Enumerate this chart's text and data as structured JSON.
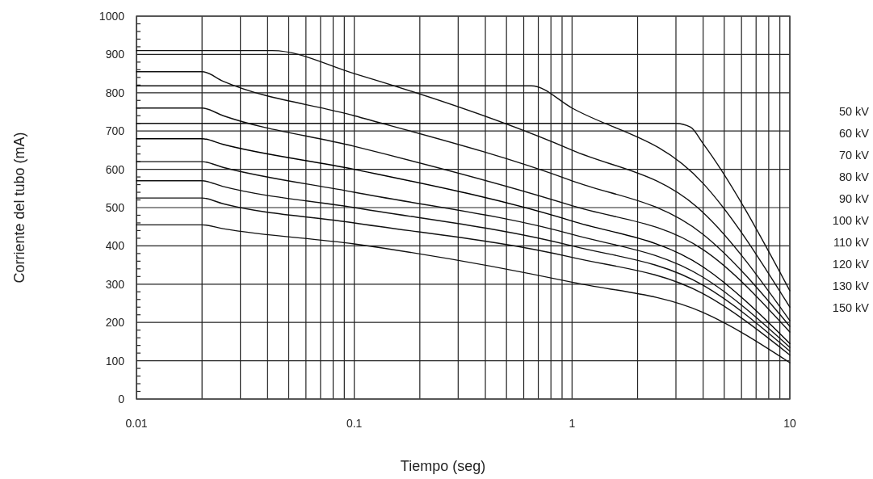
{
  "chart_data": {
    "type": "line",
    "xlabel": "Tiempo (seg)",
    "ylabel": "Corriente del tubo (mA)",
    "log": "x",
    "grid": true,
    "line_style": "solid",
    "annotations": [
      "50 kV",
      "60 kV",
      "70 kV",
      "80 kV",
      "90 kV",
      "100 kV",
      "110 kV",
      "120 kV",
      "130 kV",
      "150 kV"
    ],
    "xlim": [
      0.01,
      10
    ],
    "ylim": [
      0,
      1000
    ],
    "xticks": [
      0.01,
      {
        "value": 0.02,
        "label": null
      },
      {
        "value": 0.03,
        "label": null
      },
      {
        "value": 0.04,
        "label": null
      },
      {
        "value": 0.05,
        "label": null
      },
      {
        "value": 0.06,
        "label": null
      },
      {
        "value": 0.07,
        "label": null
      },
      {
        "value": 0.08,
        "label": null
      },
      {
        "value": 0.09,
        "label": null
      },
      0.1,
      {
        "value": 0.2,
        "label": null
      },
      {
        "value": 0.3,
        "label": null
      },
      {
        "value": 0.4,
        "label": null
      },
      {
        "value": 0.5,
        "label": null
      },
      {
        "value": 0.6,
        "label": null
      },
      {
        "value": 0.7,
        "label": null
      },
      {
        "value": 0.8,
        "label": null
      },
      {
        "value": 0.9,
        "label": null
      },
      1,
      {
        "value": 2,
        "label": null
      },
      {
        "value": 3,
        "label": null
      },
      {
        "value": 4,
        "label": null
      },
      {
        "value": 5,
        "label": null
      },
      {
        "value": 6,
        "label": null
      },
      {
        "value": 7,
        "label": null
      },
      {
        "value": 8,
        "label": null
      },
      {
        "value": 9,
        "label": null
      },
      10
    ],
    "yticks": [
      0,
      100,
      200,
      300,
      400,
      500,
      600,
      700,
      800,
      900,
      1000
    ],
    "series": [
      {
        "color": "#111111",
        "x": [
          0.01,
          0.042,
          0.1,
          1,
          4,
          10
        ],
        "values": [
          910,
          910,
          850,
          650,
          487,
          205
        ]
      },
      {
        "color": "#111111",
        "x": [
          0.01,
          0.02,
          0.025,
          0.1,
          1,
          4,
          10
        ],
        "values": [
          855,
          855,
          830,
          740,
          570,
          430,
          190
        ]
      },
      {
        "color": "#111111",
        "x": [
          0.01,
          0.65,
          1,
          4,
          10
        ],
        "values": [
          818,
          818,
          760,
          563,
          240
        ]
      },
      {
        "color": "#111111",
        "x": [
          0.01,
          0.02,
          0.025,
          0.1,
          1,
          4,
          10
        ],
        "values": [
          760,
          760,
          740,
          660,
          505,
          390,
          175
        ]
      },
      {
        "color": "#111111",
        "x": [
          0.01,
          3,
          3.5,
          4,
          10
        ],
        "values": [
          720,
          720,
          710,
          667,
          283
        ]
      },
      {
        "color": "#000000",
        "x": [
          0.01,
          0.02,
          0.025,
          0.1,
          1,
          4,
          10
        ],
        "values": [
          680,
          680,
          665,
          600,
          465,
          345,
          145
        ]
      },
      {
        "color": "#111111",
        "x": [
          0.01,
          0.02,
          0.025,
          0.1,
          1,
          4,
          10
        ],
        "values": [
          620,
          620,
          605,
          540,
          430,
          318,
          135
        ]
      },
      {
        "color": "#111111",
        "x": [
          0.01,
          0.02,
          0.025,
          0.1,
          1,
          4,
          10
        ],
        "values": [
          570,
          570,
          555,
          500,
          400,
          297,
          125
        ]
      },
      {
        "color": "#111111",
        "x": [
          0.01,
          0.02,
          0.025,
          0.1,
          1,
          4,
          10
        ],
        "values": [
          525,
          525,
          510,
          460,
          370,
          275,
          115
        ]
      },
      {
        "color": "#111111",
        "x": [
          0.01,
          0.02,
          0.025,
          0.1,
          1,
          4,
          10
        ],
        "values": [
          455,
          455,
          445,
          405,
          305,
          226,
          95
        ]
      }
    ]
  }
}
